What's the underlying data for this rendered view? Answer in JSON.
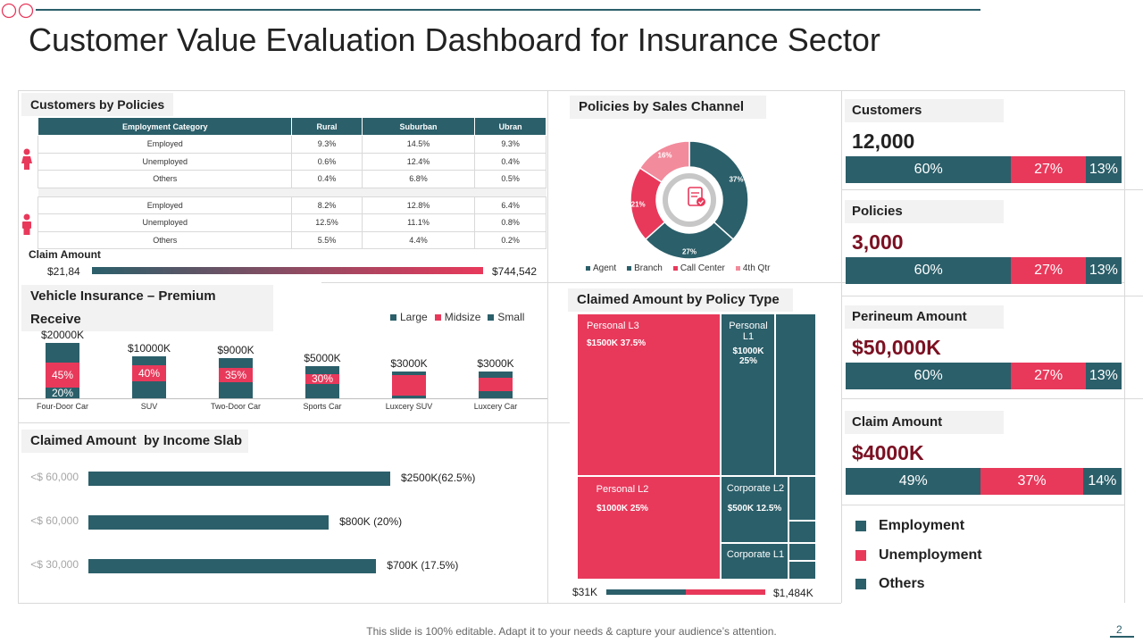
{
  "page": {
    "title": "Customer Value Evaluation Dashboard for Insurance Sector",
    "footer": "This slide is 100% editable. Adapt it to your needs & capture your audience’s attention.",
    "page_number": "2"
  },
  "colors": {
    "teal": "#2b5f6a",
    "red": "#e8395b",
    "pink": "#f28b9c",
    "dark_red": "#7b1022",
    "grey": "#f2f2f2"
  },
  "customers_by_policies": {
    "title": "Customers by Policies",
    "headers": [
      "Employment Category",
      "Rural",
      "Suburban",
      "Ubran"
    ],
    "female_rows": [
      [
        "Employed",
        "9.3%",
        "14.5%",
        "9.3%"
      ],
      [
        "Unemployed",
        "0.6%",
        "12.4%",
        "0.4%"
      ],
      [
        "Others",
        "0.4%",
        "6.8%",
        "0.5%"
      ]
    ],
    "male_rows": [
      [
        "Employed",
        "8.2%",
        "12.8%",
        "6.4%"
      ],
      [
        "Unemployed",
        "12.5%",
        "11.1%",
        "0.8%"
      ],
      [
        "Others",
        "5.5%",
        "4.4%",
        "0.2%"
      ]
    ],
    "claim_label": "Claim Amount",
    "claim_min": "$21,84",
    "claim_max": "$744,542",
    "female_icon": "female-person-icon",
    "male_icon": "male-person-icon"
  },
  "policies_by_channel": {
    "title": "Policies by Sales Channel",
    "center_icon": "policy-document-icon"
  },
  "vehicle": {
    "title": "Vehicle Insurance – Premium Receive",
    "legend": [
      "Large",
      "Midsize",
      "Small"
    ]
  },
  "income": {
    "title": "Claimed Amount  by Income Slab"
  },
  "policy_type": {
    "title": "Claimed Amount by Policy Type",
    "cells": [
      {
        "name": "Personal L3",
        "value": "$1500K 37.5%"
      },
      {
        "name": "Personal L1",
        "value": "$1000K 25%"
      },
      {
        "name": "Personal L2",
        "value": "$1000K 25%"
      },
      {
        "name": "Corporate L2",
        "value": "$500K 12.5%"
      },
      {
        "name": "Corporate L1",
        "value": ""
      }
    ],
    "range_min": "$31K",
    "range_max": "$1,484K"
  },
  "kpis": [
    {
      "label": "Customers",
      "value": "12,000",
      "value_color": "#222222",
      "segments": [
        "60%",
        "27%",
        "13%"
      ]
    },
    {
      "label": "Policies",
      "value": "3,000",
      "value_color": "#7b1022",
      "segments": [
        "60%",
        "27%",
        "13%"
      ]
    },
    {
      "label": "Perineum Amount",
      "value": "$50,000K",
      "value_color": "#7b1022",
      "segments": [
        "60%",
        "27%",
        "13%"
      ]
    },
    {
      "label": "Claim Amount",
      "value": "$4000K",
      "value_color": "#7b1022",
      "segments": [
        "49%",
        "37%",
        "14%"
      ]
    }
  ],
  "kpi_shares": [
    [
      60,
      27,
      13
    ],
    [
      60,
      27,
      13
    ],
    [
      60,
      27,
      13
    ],
    [
      49,
      37,
      14
    ]
  ],
  "kpi_legend": [
    "Employment",
    "Unemployment",
    "Others"
  ],
  "chart_data": [
    {
      "type": "pie",
      "title": "Policies by Sales Channel",
      "categories": [
        "Agent",
        "Branch",
        "Call Center",
        "4th Qtr"
      ],
      "values": [
        37,
        27,
        21,
        16
      ],
      "labels": [
        "37%",
        "27%",
        "21%",
        "16%"
      ],
      "colors": [
        "#2b5f6a",
        "#2b5f6a",
        "#e8395b",
        "#f28b9c"
      ]
    },
    {
      "type": "bar",
      "title": "Vehicle Insurance – Premium Receive",
      "categories": [
        "Four-Door Car",
        "SUV",
        "Two-Door Car",
        "Sports Car",
        "Luxcery SUV",
        "Luxcery Car"
      ],
      "totals": [
        "$20000K",
        "$10000K",
        "$9000K",
        "$5000K",
        "$3000K",
        "$3000K"
      ],
      "total_values": [
        20000,
        10000,
        9000,
        5000,
        3000,
        3000
      ],
      "series": [
        {
          "name": "Large",
          "values": [
            35,
            20,
            25,
            25,
            15,
            25
          ]
        },
        {
          "name": "Midsize",
          "values": [
            45,
            40,
            35,
            30,
            75,
            50
          ]
        },
        {
          "name": "Small",
          "values": [
            20,
            40,
            40,
            45,
            10,
            25
          ]
        }
      ],
      "segment_labels": {
        "Midsize": [
          "45%",
          "40%",
          "35%",
          "30%",
          "",
          ""
        ],
        "Small": [
          "20%",
          "",
          "",
          "",
          "",
          ""
        ]
      }
    },
    {
      "type": "bar",
      "orientation": "horizontal",
      "title": "Claimed Amount  by Income Slab",
      "categories": [
        "<$ 60,000",
        "<$ 60,000",
        "<$ 30,000"
      ],
      "values": [
        2500,
        800,
        700
      ],
      "labels": [
        "$2500K(62.5%)",
        "$800K (20%)",
        "$700K (17.5%)"
      ]
    }
  ]
}
